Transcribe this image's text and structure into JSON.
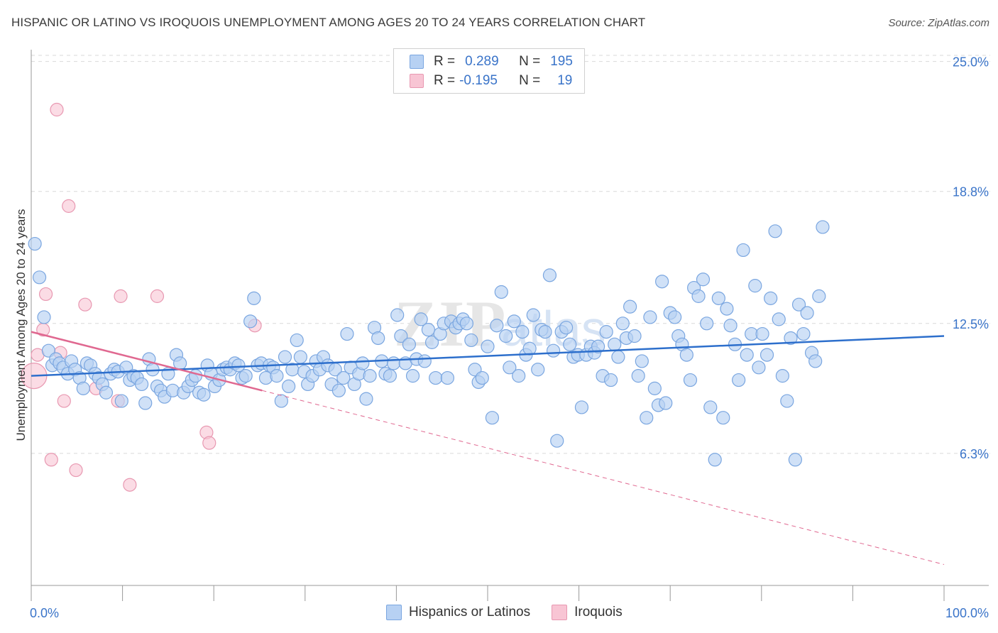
{
  "title": "HISPANIC OR LATINO VS IROQUOIS UNEMPLOYMENT AMONG AGES 20 TO 24 YEARS CORRELATION CHART",
  "source": "Source: ZipAtlas.com",
  "legend": {
    "series1": {
      "r_label": "R =",
      "r_value": "0.289",
      "n_label": "N =",
      "n_value": "195"
    },
    "series2": {
      "r_label": "R =",
      "r_value": "-0.195",
      "n_label": "N =",
      "n_value": "19"
    }
  },
  "bottom_legend": [
    "Hispanics or Latinos",
    "Iroquois"
  ],
  "colors": {
    "blue_fill": "#b7d1f3",
    "blue_stroke": "#7aa6e0",
    "blue_line": "#2d6fcc",
    "pink_fill": "#f8c5d4",
    "pink_stroke": "#e898b1",
    "pink_line": "#e06890",
    "grid": "#d9d9d9",
    "tick_text": "#3a74c9"
  },
  "chart_data": {
    "type": "scatter",
    "title": "HISPANIC OR LATINO VS IROQUOIS UNEMPLOYMENT AMONG AGES 20 TO 24 YEARS CORRELATION CHART",
    "xlabel": "",
    "ylabel": "Unemployment Among Ages 20 to 24 years",
    "xlim": [
      0,
      100
    ],
    "ylim": [
      0,
      25.9
    ],
    "x_tick_labels": [
      "0.0%",
      "100.0%"
    ],
    "y_ticks": [
      6.3,
      12.5,
      18.8,
      25.0
    ],
    "y_tick_labels": [
      "6.3%",
      "12.5%",
      "18.8%",
      "25.0%"
    ],
    "grid": true,
    "watermark": "ZIPatlas",
    "series": [
      {
        "name": "Hispanics or Latinos",
        "R": 0.289,
        "N": 195,
        "trend": {
          "x": [
            0,
            100
          ],
          "y": [
            10.0,
            11.9
          ]
        },
        "points": [
          [
            0.4,
            16.3
          ],
          [
            0.9,
            14.7
          ],
          [
            1.4,
            12.8
          ],
          [
            1.9,
            11.2
          ],
          [
            2.3,
            10.5
          ],
          [
            2.7,
            10.8
          ],
          [
            3.1,
            10.6
          ],
          [
            3.5,
            10.4
          ],
          [
            4.0,
            10.1
          ],
          [
            4.4,
            10.7
          ],
          [
            4.8,
            10.3
          ],
          [
            5.3,
            9.9
          ],
          [
            5.7,
            9.4
          ],
          [
            6.1,
            10.6
          ],
          [
            6.5,
            10.5
          ],
          [
            7.0,
            10.1
          ],
          [
            7.4,
            9.9
          ],
          [
            7.8,
            9.6
          ],
          [
            8.2,
            9.2
          ],
          [
            8.7,
            10.1
          ],
          [
            9.1,
            10.3
          ],
          [
            9.5,
            10.2
          ],
          [
            9.9,
            8.8
          ],
          [
            10.4,
            10.4
          ],
          [
            10.8,
            9.8
          ],
          [
            11.2,
            10.0
          ],
          [
            11.6,
            9.9
          ],
          [
            12.1,
            9.6
          ],
          [
            12.5,
            8.7
          ],
          [
            12.9,
            10.8
          ],
          [
            13.3,
            10.3
          ],
          [
            13.8,
            9.5
          ],
          [
            14.2,
            9.3
          ],
          [
            14.6,
            9.0
          ],
          [
            15.0,
            10.1
          ],
          [
            15.5,
            9.3
          ],
          [
            15.9,
            11.0
          ],
          [
            16.3,
            10.6
          ],
          [
            16.7,
            9.2
          ],
          [
            17.2,
            9.5
          ],
          [
            17.6,
            9.8
          ],
          [
            18.0,
            10.0
          ],
          [
            18.4,
            9.2
          ],
          [
            18.9,
            9.1
          ],
          [
            19.3,
            10.5
          ],
          [
            19.7,
            10.1
          ],
          [
            20.1,
            9.5
          ],
          [
            20.6,
            9.8
          ],
          [
            21.0,
            10.3
          ],
          [
            21.4,
            10.4
          ],
          [
            21.8,
            10.3
          ],
          [
            22.3,
            10.6
          ],
          [
            22.7,
            10.5
          ],
          [
            23.1,
            9.9
          ],
          [
            23.5,
            10.0
          ],
          [
            24.0,
            12.6
          ],
          [
            24.4,
            13.7
          ],
          [
            24.8,
            10.5
          ],
          [
            25.2,
            10.6
          ],
          [
            25.7,
            9.9
          ],
          [
            26.1,
            10.5
          ],
          [
            26.5,
            10.4
          ],
          [
            26.9,
            10.0
          ],
          [
            27.4,
            8.8
          ],
          [
            27.8,
            10.9
          ],
          [
            28.2,
            9.5
          ],
          [
            28.6,
            10.3
          ],
          [
            29.1,
            11.7
          ],
          [
            29.5,
            10.9
          ],
          [
            29.9,
            10.2
          ],
          [
            30.3,
            9.6
          ],
          [
            30.8,
            10.0
          ],
          [
            31.2,
            10.7
          ],
          [
            31.6,
            10.3
          ],
          [
            32.0,
            10.9
          ],
          [
            32.5,
            10.5
          ],
          [
            32.9,
            9.6
          ],
          [
            33.3,
            10.3
          ],
          [
            33.7,
            9.3
          ],
          [
            34.2,
            9.9
          ],
          [
            34.6,
            12.0
          ],
          [
            35.0,
            10.4
          ],
          [
            35.4,
            9.6
          ],
          [
            35.9,
            10.1
          ],
          [
            36.3,
            10.6
          ],
          [
            36.7,
            8.9
          ],
          [
            37.1,
            10.0
          ],
          [
            37.6,
            12.3
          ],
          [
            38.0,
            11.8
          ],
          [
            38.4,
            10.7
          ],
          [
            38.8,
            10.1
          ],
          [
            39.3,
            10.0
          ],
          [
            39.7,
            10.6
          ],
          [
            40.1,
            12.9
          ],
          [
            40.5,
            11.9
          ],
          [
            41.0,
            10.6
          ],
          [
            41.4,
            11.5
          ],
          [
            41.8,
            10.0
          ],
          [
            42.2,
            10.8
          ],
          [
            42.7,
            12.7
          ],
          [
            43.1,
            10.7
          ],
          [
            43.5,
            12.2
          ],
          [
            43.9,
            11.6
          ],
          [
            44.3,
            9.9
          ],
          [
            44.8,
            12.0
          ],
          [
            45.2,
            12.5
          ],
          [
            45.6,
            9.9
          ],
          [
            46.0,
            12.6
          ],
          [
            46.5,
            12.3
          ],
          [
            46.9,
            12.5
          ],
          [
            47.3,
            12.7
          ],
          [
            47.7,
            12.5
          ],
          [
            48.2,
            11.7
          ],
          [
            48.6,
            10.3
          ],
          [
            49.0,
            9.7
          ],
          [
            49.4,
            9.9
          ],
          [
            50.0,
            11.4
          ],
          [
            50.5,
            8.0
          ],
          [
            51.0,
            12.4
          ],
          [
            51.5,
            14.0
          ],
          [
            52.0,
            11.9
          ],
          [
            52.4,
            10.4
          ],
          [
            52.9,
            12.6
          ],
          [
            53.4,
            10.0
          ],
          [
            53.8,
            12.1
          ],
          [
            54.2,
            11.0
          ],
          [
            54.6,
            11.3
          ],
          [
            55.0,
            12.9
          ],
          [
            55.5,
            10.3
          ],
          [
            55.9,
            12.2
          ],
          [
            56.3,
            12.1
          ],
          [
            56.8,
            14.8
          ],
          [
            57.2,
            11.2
          ],
          [
            57.6,
            6.9
          ],
          [
            58.1,
            12.1
          ],
          [
            58.6,
            12.3
          ],
          [
            59.0,
            11.5
          ],
          [
            59.4,
            10.9
          ],
          [
            59.9,
            11.0
          ],
          [
            60.3,
            8.5
          ],
          [
            60.8,
            11.0
          ],
          [
            61.3,
            11.4
          ],
          [
            61.7,
            11.1
          ],
          [
            62.1,
            11.4
          ],
          [
            62.6,
            10.0
          ],
          [
            63.0,
            12.1
          ],
          [
            63.5,
            9.8
          ],
          [
            63.9,
            11.5
          ],
          [
            64.3,
            10.9
          ],
          [
            64.8,
            12.5
          ],
          [
            65.2,
            11.8
          ],
          [
            65.6,
            13.3
          ],
          [
            66.1,
            11.9
          ],
          [
            66.5,
            10.0
          ],
          [
            66.9,
            10.7
          ],
          [
            67.4,
            8.0
          ],
          [
            67.8,
            12.8
          ],
          [
            68.3,
            9.4
          ],
          [
            68.7,
            8.6
          ],
          [
            69.1,
            14.5
          ],
          [
            69.5,
            8.7
          ],
          [
            70.0,
            13.0
          ],
          [
            70.5,
            12.8
          ],
          [
            70.9,
            11.9
          ],
          [
            71.3,
            11.5
          ],
          [
            71.8,
            11.0
          ],
          [
            72.2,
            9.8
          ],
          [
            72.6,
            14.2
          ],
          [
            73.1,
            13.8
          ],
          [
            73.6,
            14.6
          ],
          [
            74.0,
            12.5
          ],
          [
            74.4,
            8.5
          ],
          [
            74.9,
            6.0
          ],
          [
            75.3,
            13.7
          ],
          [
            75.8,
            8.0
          ],
          [
            76.2,
            13.2
          ],
          [
            76.6,
            12.4
          ],
          [
            77.1,
            11.5
          ],
          [
            77.5,
            9.8
          ],
          [
            78.0,
            16.0
          ],
          [
            78.4,
            11.0
          ],
          [
            78.9,
            12.0
          ],
          [
            79.3,
            14.3
          ],
          [
            79.7,
            10.4
          ],
          [
            80.1,
            12.0
          ],
          [
            80.6,
            11.0
          ],
          [
            81.0,
            13.7
          ],
          [
            81.5,
            16.9
          ],
          [
            81.9,
            12.7
          ],
          [
            82.3,
            10.0
          ],
          [
            82.8,
            8.8
          ],
          [
            83.2,
            11.8
          ],
          [
            83.7,
            6.0
          ],
          [
            84.1,
            13.4
          ],
          [
            84.6,
            12.0
          ],
          [
            85.0,
            13.0
          ],
          [
            85.5,
            11.1
          ],
          [
            85.9,
            10.7
          ],
          [
            86.3,
            13.8
          ],
          [
            86.7,
            17.1
          ]
        ]
      },
      {
        "name": "Iroquois",
        "R": -0.195,
        "N": 19,
        "trend": {
          "x": [
            0,
            25.3
          ],
          "y": [
            12.1,
            9.3
          ]
        },
        "trend_extension": {
          "x": [
            25.3,
            100
          ],
          "y": [
            9.3,
            1.0
          ]
        },
        "points": [
          [
            0.3,
            10.0
          ],
          [
            0.7,
            11.0
          ],
          [
            1.3,
            12.2
          ],
          [
            1.6,
            13.9
          ],
          [
            2.2,
            6.0
          ],
          [
            2.8,
            22.7
          ],
          [
            3.2,
            11.1
          ],
          [
            3.6,
            8.8
          ],
          [
            4.1,
            18.1
          ],
          [
            4.9,
            5.5
          ],
          [
            5.9,
            13.4
          ],
          [
            7.1,
            9.4
          ],
          [
            9.5,
            8.8
          ],
          [
            9.8,
            13.8
          ],
          [
            10.8,
            4.8
          ],
          [
            13.8,
            13.8
          ],
          [
            19.2,
            7.3
          ],
          [
            19.5,
            6.8
          ],
          [
            24.5,
            12.4
          ]
        ]
      }
    ]
  }
}
